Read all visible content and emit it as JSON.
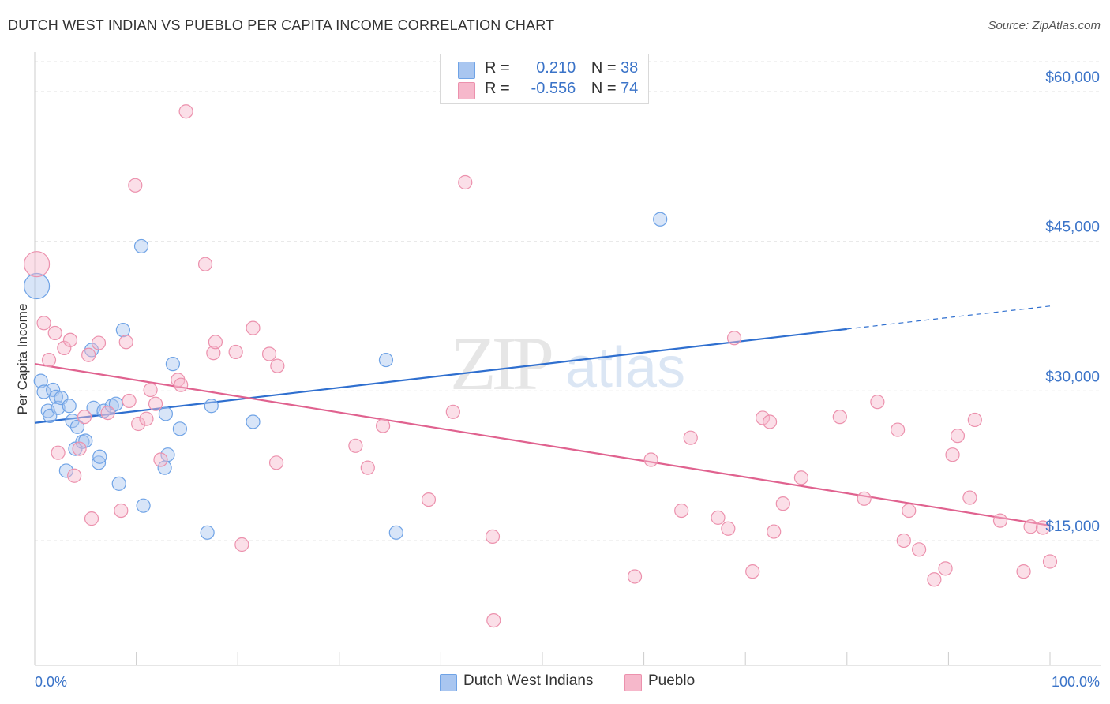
{
  "title": "DUTCH WEST INDIAN VS PUEBLO PER CAPITA INCOME CORRELATION CHART",
  "source": "Source: ZipAtlas.com",
  "watermark": {
    "zip": "ZIP",
    "atlas": "atlas"
  },
  "legend": {
    "rows": [
      {
        "r_label": "R = ",
        "r_value": "0.210",
        "n_label": "N = ",
        "n_value": "38",
        "color": "#a9c6f0"
      },
      {
        "r_label": "R = ",
        "r_value": "-0.556",
        "n_label": "N = ",
        "n_value": "74",
        "color": "#f6b8cb"
      }
    ]
  },
  "bottom_legend": [
    {
      "label": "Dutch West Indians",
      "color": "#a9c6f0"
    },
    {
      "label": "Pueblo",
      "color": "#f6b8cb"
    }
  ],
  "chart_data": {
    "type": "scatter",
    "title": "DUTCH WEST INDIAN VS PUEBLO PER CAPITA INCOME CORRELATION CHART",
    "ylabel": "Per Capita Income",
    "xlabel": "",
    "xlim": [
      0,
      100
    ],
    "ylim": [
      2500,
      63000
    ],
    "x_tick_labels": [
      "0.0%",
      "100.0%"
    ],
    "y_ticks": [
      15000,
      30000,
      45000,
      60000
    ],
    "y_tick_labels": [
      "$15,000",
      "$30,000",
      "$45,000",
      "$60,000"
    ],
    "grid": "horizontal-dashed",
    "legend_position": "top-center",
    "series": [
      {
        "name": "Dutch West Indians",
        "color": "#6fa3e6",
        "fill": "#a9c6f0",
        "r": 0.21,
        "n": 38,
        "trend": {
          "x0": 0,
          "y0": 26800,
          "x1": 80,
          "y1": 36200,
          "extend_to_x": 100,
          "extend_y": 38500
        },
        "points": [
          {
            "x": 0.2,
            "y": 40500,
            "big": true
          },
          {
            "x": 0.6,
            "y": 31000
          },
          {
            "x": 0.9,
            "y": 29900
          },
          {
            "x": 1.3,
            "y": 28000
          },
          {
            "x": 1.5,
            "y": 27500
          },
          {
            "x": 1.8,
            "y": 30100
          },
          {
            "x": 2.1,
            "y": 29400
          },
          {
            "x": 2.3,
            "y": 28300
          },
          {
            "x": 2.6,
            "y": 29300
          },
          {
            "x": 3.1,
            "y": 22000
          },
          {
            "x": 3.4,
            "y": 28500
          },
          {
            "x": 3.7,
            "y": 27000
          },
          {
            "x": 4.0,
            "y": 24200
          },
          {
            "x": 4.2,
            "y": 26400
          },
          {
            "x": 4.7,
            "y": 24900
          },
          {
            "x": 5.0,
            "y": 25000
          },
          {
            "x": 5.6,
            "y": 34100
          },
          {
            "x": 5.8,
            "y": 28300
          },
          {
            "x": 6.3,
            "y": 22800
          },
          {
            "x": 6.4,
            "y": 23400
          },
          {
            "x": 6.8,
            "y": 28000
          },
          {
            "x": 7.6,
            "y": 28500
          },
          {
            "x": 8.0,
            "y": 28700
          },
          {
            "x": 8.3,
            "y": 20700
          },
          {
            "x": 8.7,
            "y": 36100
          },
          {
            "x": 10.5,
            "y": 44500
          },
          {
            "x": 10.7,
            "y": 18500
          },
          {
            "x": 12.8,
            "y": 22300
          },
          {
            "x": 12.9,
            "y": 27700
          },
          {
            "x": 13.1,
            "y": 23600
          },
          {
            "x": 13.6,
            "y": 32700
          },
          {
            "x": 14.3,
            "y": 26200
          },
          {
            "x": 17.0,
            "y": 15800
          },
          {
            "x": 17.4,
            "y": 28500
          },
          {
            "x": 21.5,
            "y": 26900
          },
          {
            "x": 34.6,
            "y": 33100
          },
          {
            "x": 35.6,
            "y": 15800
          },
          {
            "x": 61.6,
            "y": 47200
          }
        ]
      },
      {
        "name": "Pueblo",
        "color": "#ec91ad",
        "fill": "#f6b8cb",
        "r": -0.556,
        "n": 74,
        "trend": {
          "x0": 0,
          "y0": 32700,
          "x1": 100,
          "y1": 16500
        },
        "points": [
          {
            "x": 0.2,
            "y": 42700,
            "big": true
          },
          {
            "x": 0.9,
            "y": 36800
          },
          {
            "x": 1.4,
            "y": 33100
          },
          {
            "x": 2.0,
            "y": 35800
          },
          {
            "x": 2.3,
            "y": 23800
          },
          {
            "x": 2.9,
            "y": 34300
          },
          {
            "x": 3.5,
            "y": 35100
          },
          {
            "x": 3.9,
            "y": 21500
          },
          {
            "x": 4.4,
            "y": 24200
          },
          {
            "x": 4.9,
            "y": 27400
          },
          {
            "x": 5.3,
            "y": 33600
          },
          {
            "x": 5.6,
            "y": 17200
          },
          {
            "x": 6.3,
            "y": 34800
          },
          {
            "x": 7.2,
            "y": 27800
          },
          {
            "x": 8.5,
            "y": 18000
          },
          {
            "x": 9.0,
            "y": 34900
          },
          {
            "x": 9.3,
            "y": 29000
          },
          {
            "x": 9.9,
            "y": 50600
          },
          {
            "x": 10.2,
            "y": 26700
          },
          {
            "x": 11.0,
            "y": 27200
          },
          {
            "x": 11.4,
            "y": 30100
          },
          {
            "x": 11.9,
            "y": 28700
          },
          {
            "x": 12.4,
            "y": 23100
          },
          {
            "x": 14.1,
            "y": 31100
          },
          {
            "x": 14.4,
            "y": 30600
          },
          {
            "x": 14.9,
            "y": 58000
          },
          {
            "x": 16.8,
            "y": 42700
          },
          {
            "x": 17.6,
            "y": 33800
          },
          {
            "x": 17.8,
            "y": 34900
          },
          {
            "x": 19.8,
            "y": 33900
          },
          {
            "x": 20.4,
            "y": 14600
          },
          {
            "x": 21.5,
            "y": 36300
          },
          {
            "x": 23.1,
            "y": 33700
          },
          {
            "x": 23.8,
            "y": 22800
          },
          {
            "x": 23.9,
            "y": 32500
          },
          {
            "x": 31.6,
            "y": 24500
          },
          {
            "x": 32.8,
            "y": 22300
          },
          {
            "x": 34.3,
            "y": 26500
          },
          {
            "x": 38.8,
            "y": 19100
          },
          {
            "x": 41.2,
            "y": 27900
          },
          {
            "x": 42.4,
            "y": 50900
          },
          {
            "x": 45.1,
            "y": 15400
          },
          {
            "x": 45.2,
            "y": 7000
          },
          {
            "x": 59.1,
            "y": 11400
          },
          {
            "x": 60.7,
            "y": 23100
          },
          {
            "x": 63.7,
            "y": 18000
          },
          {
            "x": 64.6,
            "y": 25300
          },
          {
            "x": 67.3,
            "y": 17300
          },
          {
            "x": 68.3,
            "y": 16200
          },
          {
            "x": 68.9,
            "y": 35300
          },
          {
            "x": 70.7,
            "y": 11900
          },
          {
            "x": 71.7,
            "y": 27300
          },
          {
            "x": 72.4,
            "y": 26900
          },
          {
            "x": 72.8,
            "y": 15900
          },
          {
            "x": 73.7,
            "y": 18700
          },
          {
            "x": 75.5,
            "y": 21300
          },
          {
            "x": 79.3,
            "y": 27400
          },
          {
            "x": 81.7,
            "y": 19200
          },
          {
            "x": 83.0,
            "y": 28900
          },
          {
            "x": 85.0,
            "y": 26100
          },
          {
            "x": 85.6,
            "y": 15000
          },
          {
            "x": 86.1,
            "y": 18000
          },
          {
            "x": 87.1,
            "y": 14100
          },
          {
            "x": 88.6,
            "y": 11100
          },
          {
            "x": 89.7,
            "y": 12200
          },
          {
            "x": 90.4,
            "y": 23600
          },
          {
            "x": 90.9,
            "y": 25500
          },
          {
            "x": 92.1,
            "y": 19300
          },
          {
            "x": 92.6,
            "y": 27100
          },
          {
            "x": 95.1,
            "y": 17000
          },
          {
            "x": 97.4,
            "y": 11900
          },
          {
            "x": 98.1,
            "y": 16400
          },
          {
            "x": 99.3,
            "y": 16300
          },
          {
            "x": 100.0,
            "y": 12900
          }
        ]
      }
    ]
  }
}
